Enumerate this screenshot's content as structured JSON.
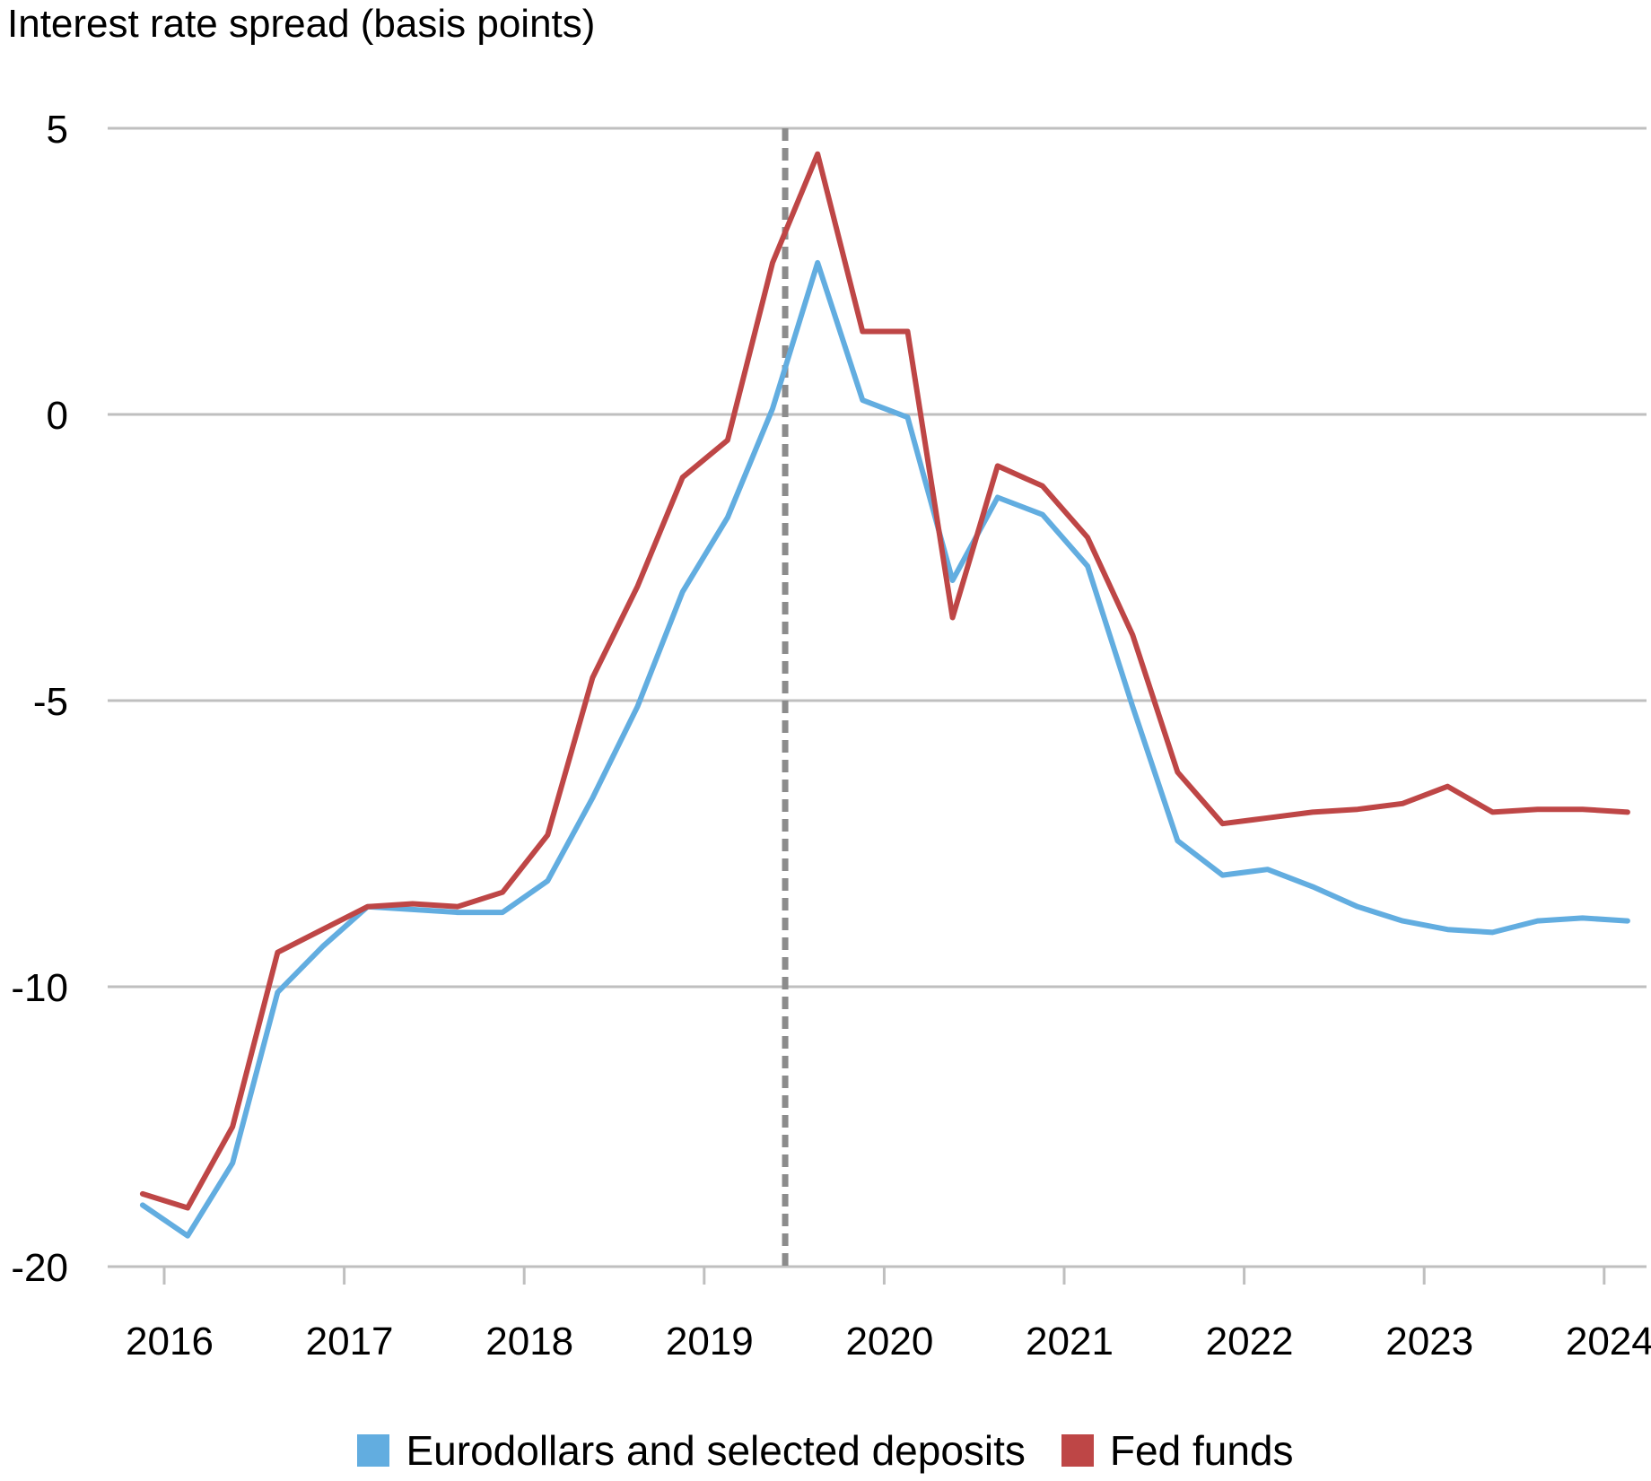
{
  "chart_data": {
    "type": "line",
    "title": "",
    "ylabel": "Interest rate spread (basis points)",
    "xlabel": "",
    "y_ticks": [
      5,
      0,
      -5,
      -10,
      -20
    ],
    "y_tick_labels": [
      "5",
      "0",
      "-5",
      "-10",
      "-20"
    ],
    "x_ticks": [
      2016,
      2017,
      2018,
      2019,
      2020,
      2021,
      2022,
      2023,
      2024
    ],
    "x_tick_labels": [
      "2016",
      "2017",
      "2018",
      "2019",
      "2020",
      "2021",
      "2022",
      "2023",
      "2024"
    ],
    "x_range": [
      2015.75,
      2024.35
    ],
    "y_scale": "broken: linear 5 to -10, compressed segment -10 to -20",
    "grid": "horizontal",
    "legend_position": "bottom",
    "vertical_marker": {
      "x": 2019.45,
      "style": "dashed",
      "color": "#8c8c8c"
    },
    "series": [
      {
        "name": "Eurodollars and selected deposits",
        "color": "#62ade0",
        "x": [
          2015.88,
          2016.13,
          2016.38,
          2016.63,
          2016.88,
          2017.13,
          2017.38,
          2017.63,
          2017.88,
          2018.13,
          2018.38,
          2018.63,
          2018.88,
          2019.13,
          2019.38,
          2019.63,
          2019.88,
          2020.13,
          2020.38,
          2020.63,
          2020.88,
          2021.13,
          2021.38,
          2021.63,
          2021.88,
          2022.13,
          2022.38,
          2022.63,
          2022.88,
          2023.13,
          2023.38,
          2023.63,
          2023.88,
          2024.13
        ],
        "y": [
          -17.8,
          -18.9,
          -16.3,
          -10.2,
          -9.3,
          -8.6,
          -8.65,
          -8.7,
          -8.7,
          -8.15,
          -6.7,
          -5.1,
          -3.1,
          -1.8,
          0.1,
          2.65,
          0.25,
          -0.05,
          -2.9,
          -1.45,
          -1.75,
          -2.65,
          -5.1,
          -7.45,
          -8.05,
          -7.95,
          -8.25,
          -8.6,
          -8.85,
          -9.0,
          -9.05,
          -8.85,
          -8.8,
          -8.85
        ]
      },
      {
        "name": "Fed funds",
        "color": "#be4646",
        "x": [
          2015.88,
          2016.13,
          2016.38,
          2016.63,
          2016.88,
          2017.13,
          2017.38,
          2017.63,
          2017.88,
          2018.13,
          2018.38,
          2018.63,
          2018.88,
          2019.13,
          2019.38,
          2019.63,
          2019.88,
          2020.13,
          2020.38,
          2020.63,
          2020.88,
          2021.13,
          2021.38,
          2021.63,
          2021.88,
          2022.13,
          2022.38,
          2022.63,
          2022.88,
          2023.13,
          2023.38,
          2023.63,
          2023.88,
          2024.13
        ],
        "y": [
          -17.4,
          -17.9,
          -15.0,
          -9.4,
          -9.0,
          -8.6,
          -8.55,
          -8.6,
          -8.35,
          -7.35,
          -4.6,
          -3.0,
          -1.1,
          -0.45,
          2.65,
          4.55,
          1.45,
          1.45,
          -3.55,
          -0.9,
          -1.25,
          -2.15,
          -3.85,
          -6.25,
          -7.15,
          -7.05,
          -6.95,
          -6.9,
          -6.8,
          -6.5,
          -6.95,
          -6.9,
          -6.9,
          -6.95
        ]
      }
    ]
  }
}
